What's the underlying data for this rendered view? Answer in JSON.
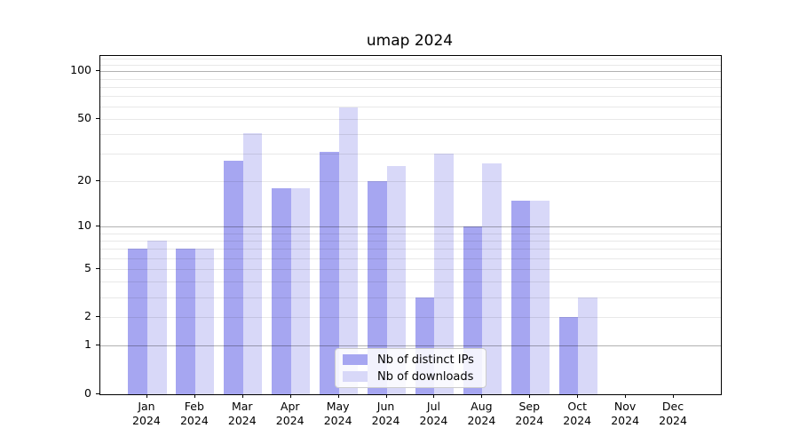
{
  "title": "umap 2024",
  "chart_data": {
    "type": "bar",
    "title": "umap 2024",
    "categories": [
      "Jan",
      "Feb",
      "Mar",
      "Apr",
      "May",
      "Jun",
      "Jul",
      "Aug",
      "Sep",
      "Oct",
      "Nov",
      "Dec"
    ],
    "category_year": "2024",
    "series": [
      {
        "name": "Nb of distinct IPs",
        "color": "#a6a6f1",
        "values": [
          7,
          7,
          27,
          18,
          31,
          20,
          3,
          10,
          15,
          2,
          0,
          0
        ]
      },
      {
        "name": "Nb of downloads",
        "color": "#d8d8f8",
        "values": [
          8,
          7,
          41,
          18,
          59,
          25,
          30,
          26,
          15,
          3,
          0,
          0
        ]
      }
    ],
    "xlabel": "",
    "ylabel": "",
    "yscale": "log1p",
    "ylim": [
      0,
      125
    ],
    "yticks": [
      0,
      1,
      2,
      5,
      10,
      20,
      50,
      100
    ],
    "major_gridlines": [
      1,
      10,
      100
    ],
    "minor_gridlines": [
      2,
      3,
      4,
      5,
      6,
      7,
      8,
      9,
      20,
      30,
      40,
      50,
      60,
      70,
      80,
      90,
      110,
      120
    ],
    "grid": true,
    "legend_position": "lower center",
    "bar_group": "side-by-side, IPs left of tick, downloads right of tick"
  },
  "legend": {
    "items": [
      {
        "label": "Nb of distinct IPs"
      },
      {
        "label": "Nb of downloads"
      }
    ]
  }
}
